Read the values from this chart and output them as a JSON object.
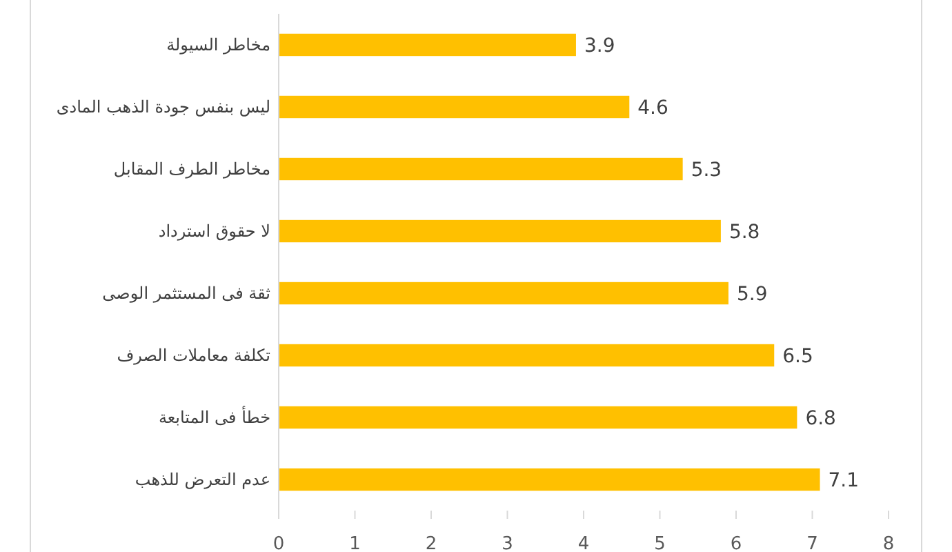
{
  "chart_data": {
    "type": "bar",
    "orientation": "horizontal",
    "categories": [
      "مخاطر السيولة",
      "ليس بنفس جودة الذهب المادى",
      "مخاطر الطرف المقابل",
      "لا حقوق استرداد",
      "ثقة فى المستثمر الوصى",
      "تكلفة معاملات الصرف",
      "خطأ فى المتابعة",
      "عدم التعرض للذهب"
    ],
    "values": [
      3.9,
      4.6,
      5.3,
      5.8,
      5.9,
      6.5,
      6.8,
      7.1
    ],
    "color": "#ffc000",
    "xlim": [
      0,
      8
    ],
    "xticks": [
      0,
      1,
      2,
      3,
      4,
      5,
      6,
      7,
      8
    ],
    "data_labels": true
  }
}
